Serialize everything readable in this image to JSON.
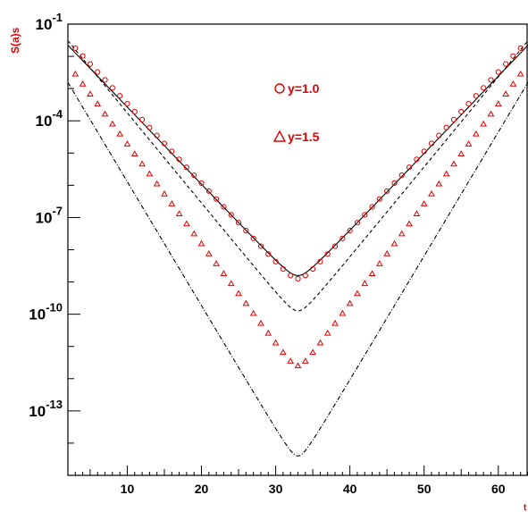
{
  "chart_data": {
    "type": "scatter",
    "title": "",
    "ylabel": "S(a)s",
    "xlabel": "t",
    "x_scale": "linear",
    "y_scale": "log",
    "xlim": [
      2,
      64
    ],
    "ylim": [
      1e-15,
      0.1
    ],
    "x_ticks": [
      10,
      20,
      30,
      40,
      50,
      60
    ],
    "y_ticks": [
      {
        "base": "10",
        "exp": "-1",
        "value": 0.1
      },
      {
        "base": "10",
        "exp": "-4",
        "value": 0.0001
      },
      {
        "base": "10",
        "exp": "-7",
        "value": 1e-07
      },
      {
        "base": "10",
        "exp": "-10",
        "value": 1e-10
      },
      {
        "base": "10",
        "exp": "-13",
        "value": 1e-13
      }
    ],
    "grid": false,
    "legend_position": "top-center",
    "legend": [
      {
        "marker": "circle",
        "label": "y=1.0"
      },
      {
        "marker": "triangle",
        "label": "y=1.5"
      }
    ],
    "colors": {
      "markers": "#e00000",
      "curves": "#000000",
      "labels": "#e00000"
    },
    "series": [
      {
        "name": "y=1.0",
        "kind": "markers",
        "marker": "circle",
        "min_x": 33,
        "min_y": 1.26e-09,
        "left_slope_decades_per_unit": -0.2467,
        "right_slope_decades_per_unit": 0.2467,
        "x_start": 3,
        "x_end": 63,
        "x_step": 1,
        "smoothing_decades": 0.25
      },
      {
        "kind": "solid-curve",
        "min_x": 33,
        "min_y": 1.58e-09,
        "left_slope_decades_per_unit": -0.24,
        "right_slope_decades_per_unit": 0.24,
        "smoothing_decades": 0.3
      },
      {
        "kind": "dashed-curve",
        "min_x": 33,
        "min_y": 1.26e-10,
        "left_slope_decades_per_unit": -0.28,
        "right_slope_decades_per_unit": 0.28,
        "smoothing_decades": 0.3
      },
      {
        "name": "y=1.5",
        "kind": "markers",
        "marker": "triangle",
        "min_x": 33,
        "min_y": 2.5e-12,
        "left_slope_decades_per_unit": -0.31,
        "right_slope_decades_per_unit": 0.31,
        "x_start": 3,
        "x_end": 63,
        "x_step": 1,
        "smoothing_decades": 0.25
      },
      {
        "kind": "dashdot-curve",
        "min_x": 33,
        "min_y": 3.98e-15,
        "left_slope_decades_per_unit": -0.385,
        "right_slope_decades_per_unit": 0.385,
        "smoothing_decades": 0.35
      }
    ]
  }
}
